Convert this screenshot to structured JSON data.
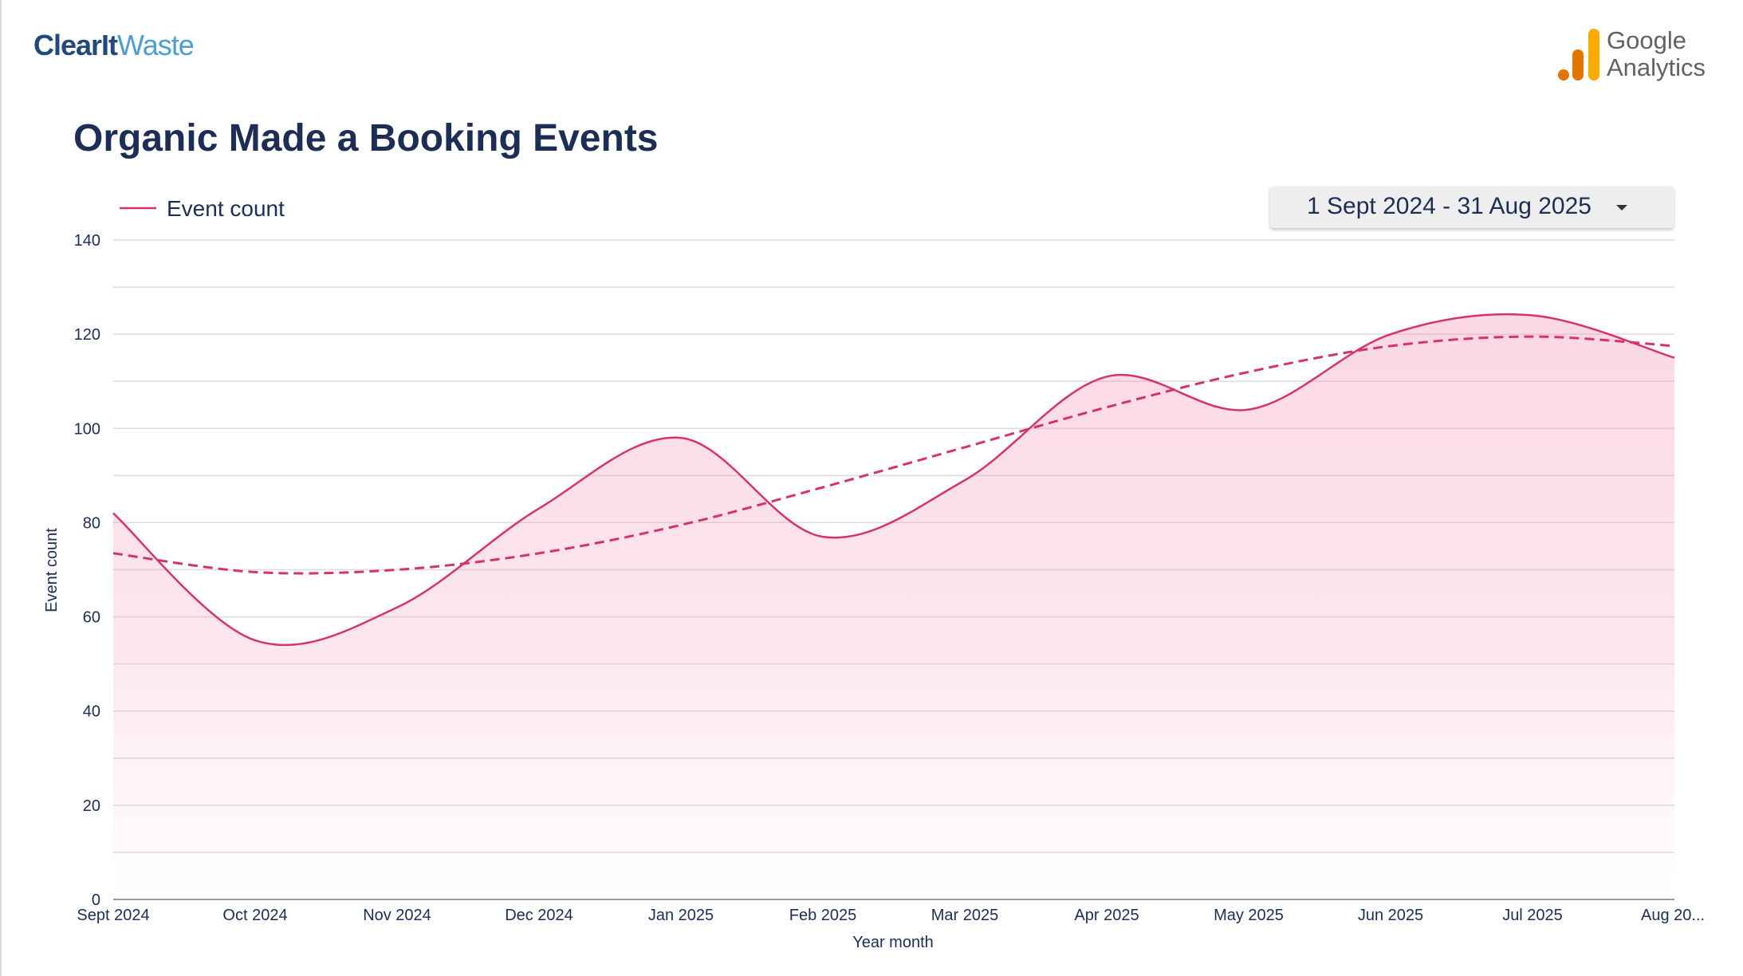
{
  "header": {
    "logo_part1": "ClearIt",
    "logo_part2": "Waste",
    "ga_line1": "Google",
    "ga_line2": "Analytics",
    "title": "Organic Made a Booking Events"
  },
  "date_range": {
    "label": "1 Sept 2024 - 31 Aug 2025"
  },
  "colors": {
    "series": "#d6336c",
    "fill": "#f7cfdc",
    "title": "#1c2e55",
    "grid": "#dcdcdc",
    "ga_orange_dark": "#e37400",
    "ga_orange_light": "#f9ab00"
  },
  "chart_data": {
    "type": "area",
    "x": [
      "Sept 2024",
      "Oct 2024",
      "Nov 2024",
      "Dec 2024",
      "Jan 2025",
      "Feb 2025",
      "Mar 2025",
      "Apr 2025",
      "May 2025",
      "Jun 2025",
      "Jul 2025",
      "Aug 20..."
    ],
    "series": [
      {
        "name": "Event count",
        "values": [
          82,
          55,
          62,
          83,
          98,
          77,
          89,
          111,
          104,
          120,
          124,
          115
        ]
      }
    ],
    "trendline": {
      "style": "dashed",
      "values": [
        73.5,
        69.5,
        70,
        73.5,
        79.5,
        87.5,
        96,
        104.5,
        112,
        117.5,
        119.5,
        117.5
      ]
    },
    "xlabel": "Year month",
    "ylabel": "Event count",
    "ylim": [
      0,
      140
    ],
    "yticks": [
      0,
      20,
      40,
      60,
      80,
      100,
      120,
      140
    ],
    "grid": true,
    "legend": "top-left"
  }
}
